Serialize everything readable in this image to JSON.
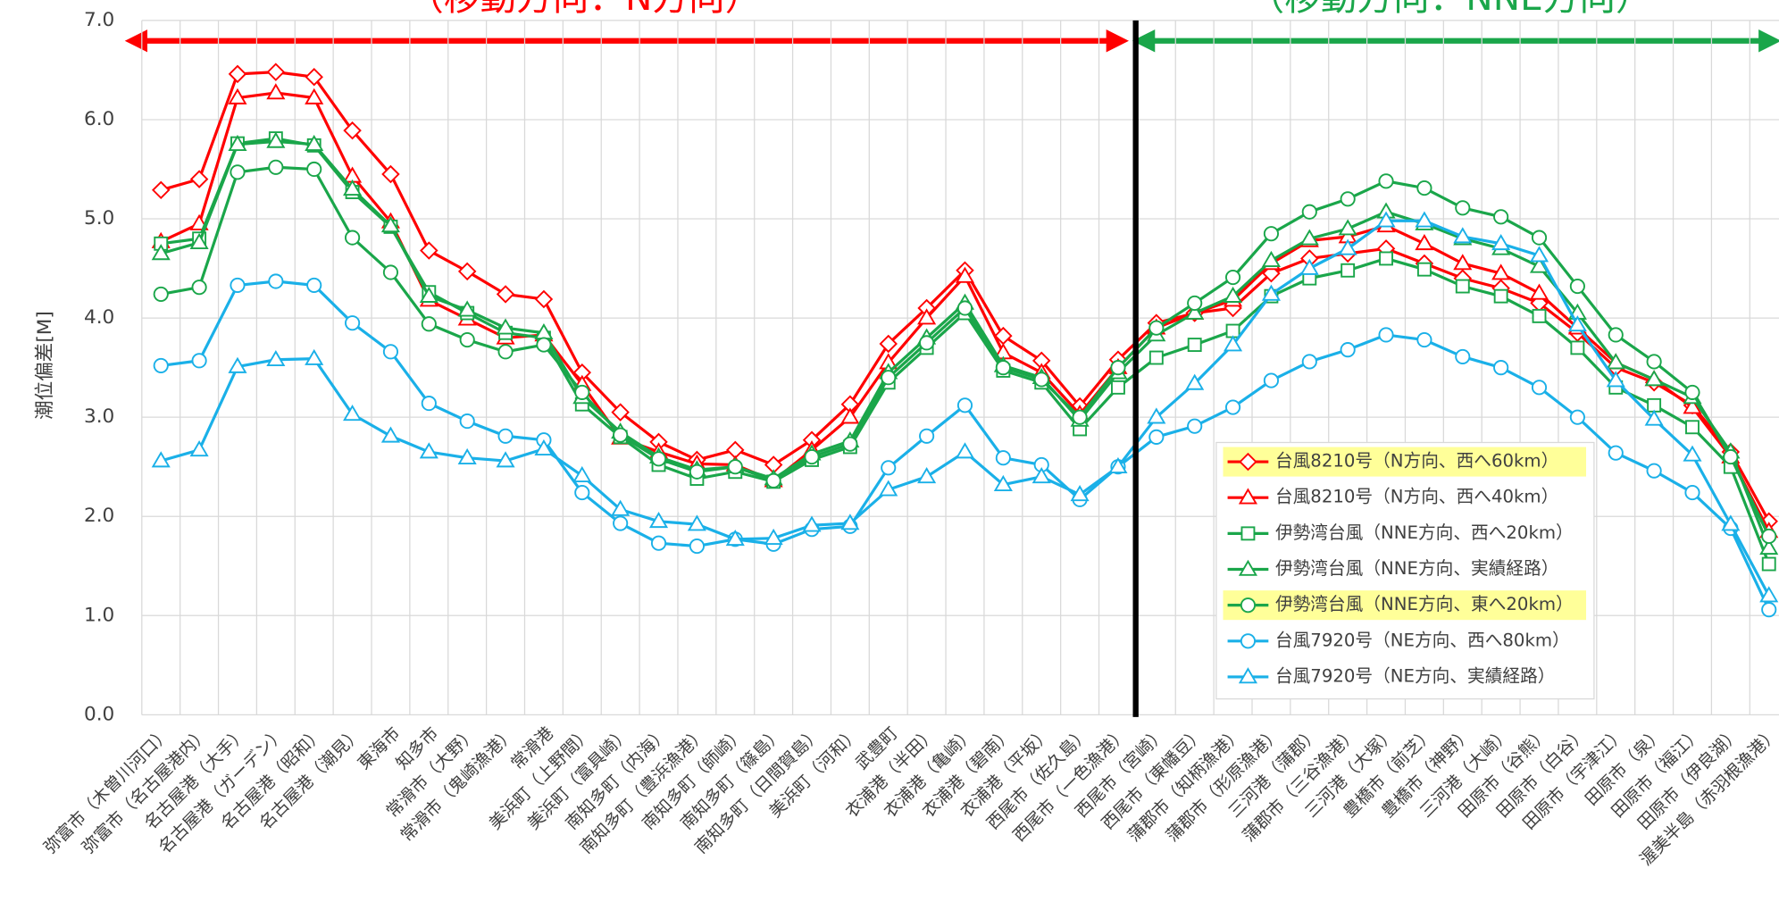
{
  "chart_data": {
    "type": "line",
    "y_label": "潮位偏差[M]",
    "annotations": [
      {
        "text": "（移動方向：N方向）",
        "color": "#ff0000"
      },
      {
        "text": "（移動方向：NNE方向）",
        "color": "#1aa64a"
      }
    ],
    "categories": [
      "弥富市（木曽川河口）",
      "弥富市（名古屋港内）",
      "名古屋港（大手）",
      "名古屋港（ガーデン）",
      "名古屋港（昭和）",
      "名古屋港（潮見）",
      "東海市",
      "知多市",
      "常滑市（大野）",
      "常滑市（鬼崎漁港）",
      "常滑港",
      "美浜町（上野間）",
      "美浜町（富具崎）",
      "南知多町（内海）",
      "南知多町（豊浜漁港）",
      "南知多町（師崎）",
      "南知多町（篠島）",
      "南知多町（日間賀島）",
      "美浜町（河和）",
      "武豊町",
      "衣浦港（半田）",
      "衣浦港（亀崎）",
      "衣浦港（碧南）",
      "衣浦港（平坂）",
      "西尾市（佐久島）",
      "西尾市（一色漁港）",
      "西尾市（宮崎）",
      "西尾市（東幡豆）",
      "蒲郡市（知柄漁港）",
      "蒲郡市（形原漁港）",
      "三河港（蒲郡）",
      "蒲郡市（三谷漁港）",
      "三河港（大塚）",
      "豊橋市（前芝）",
      "豊橋市（神野）",
      "三河港（大崎）",
      "田原市（谷熊）",
      "田原市（白谷）",
      "田原市（宇津江）",
      "田原市（泉）",
      "田原市（福江）",
      "田原市（伊良湖）",
      "渥美半島（赤羽根漁港）"
    ],
    "series": [
      {
        "name": "台風8210号（N方向、西へ60km）",
        "color": "#ff0000",
        "marker": "diamond",
        "highlight": true,
        "values": [
          5.29,
          5.4,
          6.46,
          6.48,
          6.43,
          5.89,
          5.45,
          4.68,
          4.47,
          4.24,
          4.19,
          3.45,
          3.05,
          2.75,
          2.57,
          2.67,
          2.52,
          2.77,
          3.13,
          3.74,
          4.1,
          4.48,
          3.82,
          3.57,
          3.11,
          3.58,
          3.95,
          4.05,
          4.1,
          4.45,
          4.6,
          4.65,
          4.7,
          4.55,
          4.4,
          4.3,
          4.15,
          3.85,
          3.5,
          3.35,
          3.12,
          2.65,
          1.95
        ]
      },
      {
        "name": "台風8210号（N方向、西へ40km）",
        "color": "#ff0000",
        "marker": "triangle",
        "highlight": false,
        "values": [
          4.77,
          4.95,
          6.22,
          6.27,
          6.22,
          5.43,
          4.97,
          4.18,
          3.99,
          3.8,
          3.83,
          3.33,
          2.79,
          2.65,
          2.53,
          2.52,
          2.36,
          2.67,
          3.0,
          3.55,
          4.0,
          4.42,
          3.65,
          3.45,
          3.03,
          3.5,
          3.9,
          4.05,
          4.18,
          4.55,
          4.78,
          4.82,
          4.93,
          4.75,
          4.55,
          4.45,
          4.25,
          3.9,
          3.55,
          3.38,
          3.1,
          2.6,
          1.85
        ]
      },
      {
        "name": "伊勢湾台風（NNE方向、西へ20km）",
        "color": "#1aa64a",
        "marker": "square",
        "highlight": false,
        "values": [
          4.75,
          4.8,
          5.76,
          5.81,
          5.74,
          5.27,
          4.92,
          4.26,
          4.05,
          3.85,
          3.8,
          3.13,
          2.8,
          2.52,
          2.38,
          2.45,
          2.35,
          2.57,
          2.7,
          3.35,
          3.7,
          4.05,
          3.47,
          3.35,
          2.88,
          3.3,
          3.6,
          3.73,
          3.87,
          4.22,
          4.4,
          4.48,
          4.6,
          4.49,
          4.32,
          4.22,
          4.02,
          3.7,
          3.3,
          3.12,
          2.9,
          2.5,
          1.52
        ]
      },
      {
        "name": "伊勢湾台風（NNE方向、実績経路）",
        "color": "#1aa64a",
        "marker": "triangle",
        "highlight": false,
        "values": [
          4.65,
          4.76,
          5.75,
          5.78,
          5.75,
          5.3,
          4.93,
          4.22,
          4.08,
          3.9,
          3.85,
          3.2,
          2.85,
          2.6,
          2.47,
          2.5,
          2.38,
          2.63,
          2.76,
          3.45,
          3.8,
          4.15,
          3.52,
          3.4,
          2.97,
          3.45,
          3.83,
          4.05,
          4.22,
          4.58,
          4.8,
          4.9,
          5.07,
          4.95,
          4.8,
          4.7,
          4.52,
          4.05,
          3.55,
          3.38,
          3.2,
          2.65,
          1.68
        ]
      },
      {
        "name": "伊勢湾台風（NNE方向、東へ20km）",
        "color": "#1aa64a",
        "marker": "circle",
        "highlight": true,
        "values": [
          4.24,
          4.31,
          5.47,
          5.52,
          5.5,
          4.81,
          4.46,
          3.94,
          3.78,
          3.66,
          3.73,
          3.25,
          2.82,
          2.58,
          2.45,
          2.5,
          2.36,
          2.6,
          2.73,
          3.4,
          3.75,
          4.1,
          3.5,
          3.38,
          3.0,
          3.5,
          3.9,
          4.15,
          4.41,
          4.85,
          5.07,
          5.2,
          5.38,
          5.31,
          5.11,
          5.02,
          4.81,
          4.32,
          3.83,
          3.56,
          3.25,
          2.6,
          1.8
        ]
      },
      {
        "name": "台風7920号（NE方向、西へ80km）",
        "color": "#1ab0e8",
        "marker": "circle",
        "highlight": false,
        "values": [
          3.52,
          3.57,
          4.33,
          4.37,
          4.33,
          3.95,
          3.66,
          3.14,
          2.96,
          2.81,
          2.77,
          2.24,
          1.93,
          1.73,
          1.7,
          1.77,
          1.72,
          1.87,
          1.9,
          2.49,
          2.81,
          3.12,
          2.59,
          2.52,
          2.17,
          2.5,
          2.8,
          2.91,
          3.1,
          3.37,
          3.56,
          3.68,
          3.83,
          3.78,
          3.61,
          3.5,
          3.3,
          3.0,
          2.64,
          2.46,
          2.24,
          1.88,
          1.06
        ]
      },
      {
        "name": "台風7920号（NE方向、実績経路）",
        "color": "#1ab0e8",
        "marker": "triangle",
        "highlight": false,
        "values": [
          2.56,
          2.67,
          3.51,
          3.58,
          3.59,
          3.03,
          2.81,
          2.65,
          2.59,
          2.56,
          2.68,
          2.41,
          2.07,
          1.95,
          1.92,
          1.77,
          1.78,
          1.91,
          1.93,
          2.27,
          2.4,
          2.65,
          2.32,
          2.4,
          2.22,
          2.5,
          3.0,
          3.34,
          3.73,
          4.24,
          4.5,
          4.7,
          4.98,
          4.98,
          4.82,
          4.75,
          4.63,
          3.93,
          3.37,
          2.98,
          2.62,
          1.92,
          1.2
        ]
      }
    ],
    "ylim": [
      0,
      7
    ],
    "yticks": [
      {
        "value": 0,
        "label": "0.0"
      },
      {
        "value": 1,
        "label": "1.0"
      },
      {
        "value": 2,
        "label": "2.0"
      },
      {
        "value": 3,
        "label": "3.0"
      },
      {
        "value": 4,
        "label": "4.0"
      },
      {
        "value": 5,
        "label": "5.0"
      },
      {
        "value": 6,
        "label": "6.0"
      },
      {
        "value": 7,
        "label": "7.0"
      }
    ],
    "grid": true
  }
}
